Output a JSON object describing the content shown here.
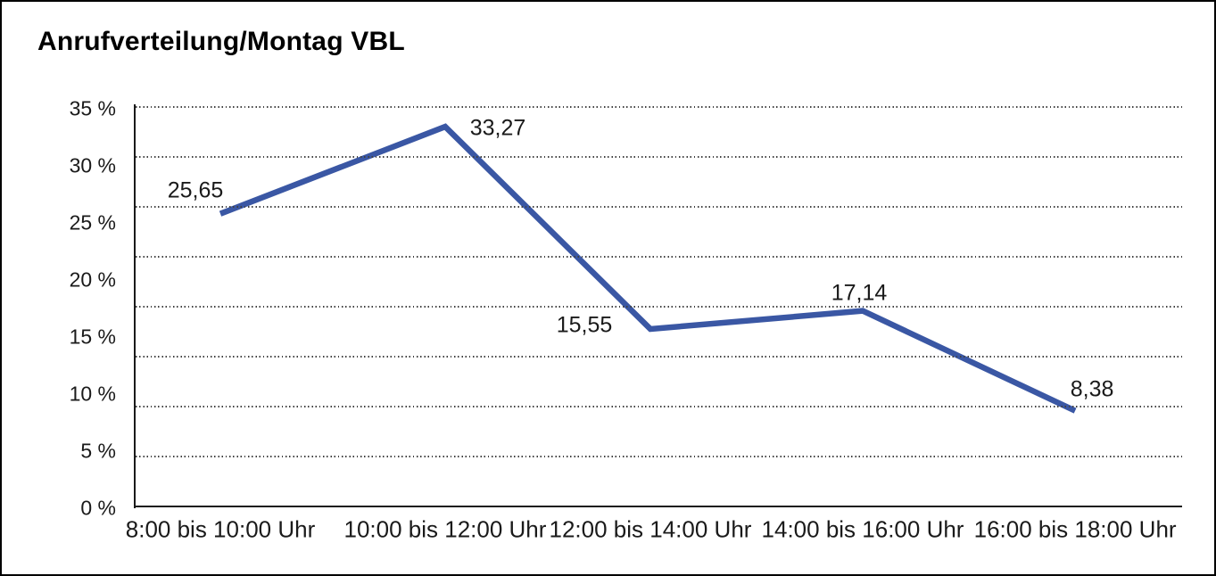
{
  "title": "Anrufverteilung/Montag VBL",
  "chart_data": {
    "type": "line",
    "title": "Anrufverteilung/Montag VBL",
    "categories": [
      "8:00 bis 10:00 Uhr",
      "10:00 bis 12:00 Uhr",
      "12:00 bis 14:00 Uhr",
      "14:00 bis 16:00 Uhr",
      "16:00 bis 18:00 Uhr"
    ],
    "values": [
      25.65,
      33.27,
      15.55,
      17.14,
      8.38
    ],
    "point_labels": [
      "25,65",
      "33,27",
      "15,55",
      "17,14",
      "8,38"
    ],
    "y_tick_labels": [
      "35 %",
      "30 %",
      "25 %",
      "20 %",
      "15 %",
      "10 %",
      "5 %",
      "0 %"
    ],
    "ylim": [
      0,
      35
    ],
    "xlabel": "",
    "ylabel": "",
    "legend": "none",
    "grid": "horizontal-dotted",
    "line_color": "#3A57A4"
  }
}
